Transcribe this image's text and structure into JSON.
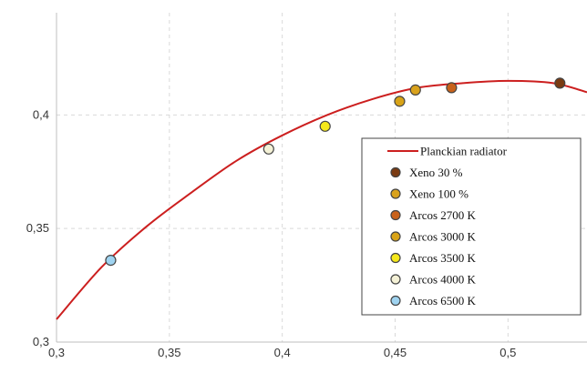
{
  "chart_data": {
    "type": "scatter",
    "xlim": [
      0.3,
      0.535
    ],
    "ylim": [
      0.3,
      0.445
    ],
    "x_ticks": [
      0.3,
      0.35,
      0.4,
      0.45,
      0.5
    ],
    "x_tick_labels": [
      "0,3",
      "0,35",
      "0,4",
      "0,45",
      "0,5"
    ],
    "y_ticks": [
      0.3,
      0.35,
      0.4
    ],
    "y_tick_labels": [
      "0,3",
      "0,35",
      "0,4"
    ],
    "grid": true,
    "legend_position": "bottom-right",
    "line_series": {
      "name": "Planckian radiator",
      "color": "#cc1f1f",
      "x": [
        0.3,
        0.32,
        0.34,
        0.36,
        0.38,
        0.4,
        0.42,
        0.44,
        0.46,
        0.48,
        0.5,
        0.52,
        0.535
      ],
      "y": [
        0.31,
        0.333,
        0.351,
        0.366,
        0.38,
        0.391,
        0.4,
        0.407,
        0.412,
        0.414,
        0.415,
        0.414,
        0.41
      ]
    },
    "series": [
      {
        "name": "Xeno 30 %",
        "color": "#7a3b12",
        "x": [
          0.523
        ],
        "y": [
          0.414
        ]
      },
      {
        "name": "Xeno 100 %",
        "color": "#d9a21c",
        "x": [
          0.459
        ],
        "y": [
          0.411
        ]
      },
      {
        "name": "Arcos 2700 K",
        "color": "#c8621b",
        "x": [
          0.475
        ],
        "y": [
          0.412
        ]
      },
      {
        "name": "Arcos 3000 K",
        "color": "#d8a317",
        "x": [
          0.452
        ],
        "y": [
          0.406
        ]
      },
      {
        "name": "Arcos 3500 K",
        "color": "#f5e81b",
        "x": [
          0.419
        ],
        "y": [
          0.395
        ]
      },
      {
        "name": "Arcos 4000 K",
        "color": "#f4f1d6",
        "x": [
          0.394
        ],
        "y": [
          0.385
        ]
      },
      {
        "name": "Arcos 6500 K",
        "color": "#9fd3f0",
        "x": [
          0.324
        ],
        "y": [
          0.336
        ]
      }
    ]
  }
}
